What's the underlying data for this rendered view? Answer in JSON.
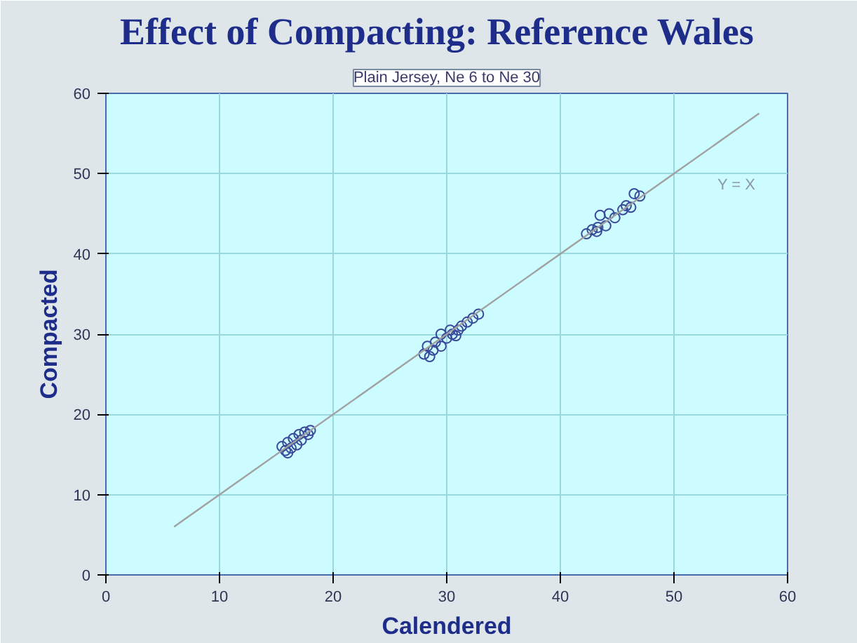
{
  "chart_data": {
    "type": "scatter",
    "title": "Effect of Compacting: Reference Wales",
    "subtitle": "Plain Jersey, Ne 6 to Ne 30",
    "xlabel": "Calendered",
    "ylabel": "Compacted",
    "xlim": [
      0,
      60
    ],
    "ylim": [
      0,
      60
    ],
    "xticks": [
      0,
      10,
      20,
      30,
      40,
      50,
      60
    ],
    "yticks": [
      0,
      10,
      20,
      30,
      40,
      50,
      60
    ],
    "grid": true,
    "series": [
      {
        "marker": "circle",
        "color": "#3a4a9a",
        "x": [
          15.5,
          15.8,
          16,
          16.3,
          16.5,
          16.8,
          17,
          17.2,
          17.5,
          17.8,
          18,
          16,
          28,
          28.3,
          28.8,
          29,
          29.5,
          30,
          30.3,
          30.5,
          31,
          31.3,
          31.8,
          32.3,
          32.8,
          29.5,
          30.8,
          28.5,
          42.3,
          42.8,
          43.3,
          43.5,
          44,
          44.3,
          44.8,
          45.5,
          45.8,
          46.2,
          46.5,
          47,
          43.2
        ],
        "values": [
          16,
          15.5,
          16.5,
          15.8,
          17,
          16.2,
          17.5,
          16.8,
          17.8,
          17.5,
          18,
          15.2,
          27.5,
          28.5,
          28,
          29,
          28.5,
          29.5,
          30.5,
          30,
          30.5,
          31,
          31.5,
          32,
          32.5,
          30,
          29.8,
          27.2,
          42.5,
          43,
          43.3,
          44.8,
          43.5,
          45,
          44.5,
          45.5,
          46,
          45.8,
          47.5,
          47.2,
          42.8
        ]
      },
      {
        "type": "line",
        "name": "Y = X",
        "color": "#a0a0a0",
        "x": [
          6,
          57.5
        ],
        "values": [
          6,
          57.5
        ]
      }
    ]
  }
}
